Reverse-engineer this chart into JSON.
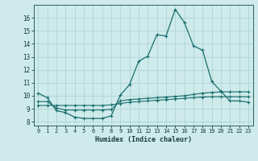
{
  "xlabel": "Humidex (Indice chaleur)",
  "xlim": [
    -0.5,
    23.5
  ],
  "ylim": [
    7.7,
    17.0
  ],
  "yticks": [
    8,
    9,
    10,
    11,
    12,
    13,
    14,
    15,
    16
  ],
  "xticks": [
    0,
    1,
    2,
    3,
    4,
    5,
    6,
    7,
    8,
    9,
    10,
    11,
    12,
    13,
    14,
    15,
    16,
    17,
    18,
    19,
    20,
    21,
    22,
    23
  ],
  "background_color": "#ceeaea",
  "grid_color": "#b0d4d4",
  "line_color": "#1a6e6e",
  "curve1_x": [
    0,
    1,
    2,
    3,
    4,
    5,
    6,
    7,
    8,
    9,
    10,
    11,
    12,
    13,
    14,
    15,
    16,
    17,
    18,
    19,
    20,
    21,
    22,
    23
  ],
  "curve1_y": [
    10.2,
    9.85,
    8.85,
    8.7,
    8.35,
    8.25,
    8.25,
    8.25,
    8.45,
    10.05,
    10.85,
    12.65,
    13.05,
    14.7,
    14.6,
    16.65,
    15.65,
    13.85,
    13.5,
    11.1,
    10.35,
    9.6,
    9.6,
    9.5
  ],
  "curve2_x": [
    0,
    1,
    2,
    3,
    4,
    5,
    6,
    7,
    8,
    9,
    10,
    11,
    12,
    13,
    14,
    15,
    16,
    17,
    18,
    19,
    20,
    21,
    22,
    23
  ],
  "curve2_y": [
    9.55,
    9.55,
    9.05,
    8.9,
    8.9,
    8.9,
    8.9,
    8.9,
    8.95,
    9.6,
    9.7,
    9.75,
    9.8,
    9.85,
    9.9,
    9.95,
    10.0,
    10.1,
    10.2,
    10.25,
    10.3,
    10.3,
    10.3,
    10.3
  ],
  "curve3_x": [
    0,
    1,
    2,
    3,
    4,
    5,
    6,
    7,
    8,
    9,
    10,
    11,
    12,
    13,
    14,
    15,
    16,
    17,
    18,
    19,
    20,
    21,
    22,
    23
  ],
  "curve3_y": [
    9.25,
    9.25,
    9.25,
    9.25,
    9.25,
    9.25,
    9.25,
    9.25,
    9.3,
    9.4,
    9.5,
    9.55,
    9.6,
    9.65,
    9.7,
    9.75,
    9.8,
    9.85,
    9.9,
    9.92,
    9.92,
    9.92,
    9.92,
    9.92
  ]
}
